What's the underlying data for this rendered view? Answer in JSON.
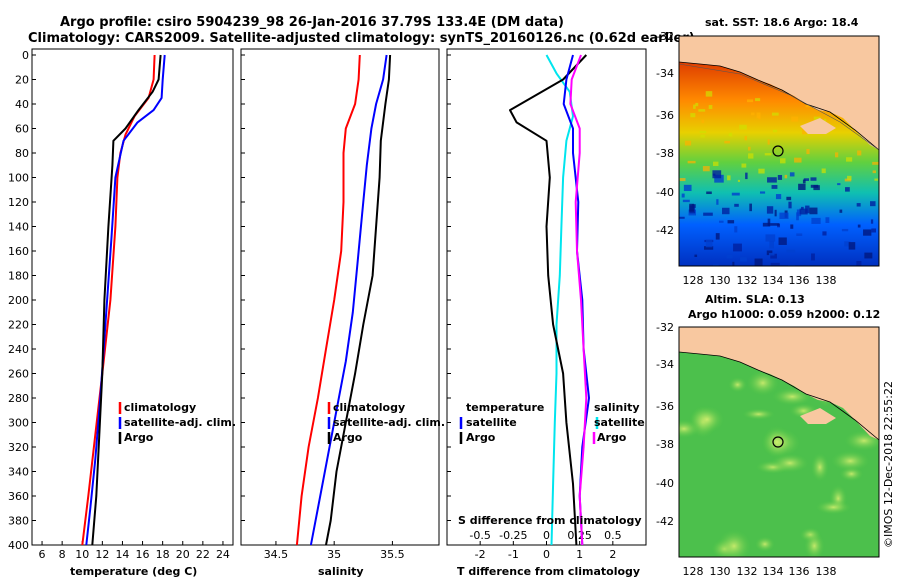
{
  "titles": {
    "line1": "Argo profile: csiro 5904239_98 26-Jan-2016 37.79S 133.4E (DM data)",
    "line2": "Climatology: CARS2009. Satellite-adjusted climatology: synTS_20160126.nc (0.62d earlier)"
  },
  "colors": {
    "climatology": "#ff0000",
    "satellite": "#0000ff",
    "argo": "#000000",
    "cyan": "#00e5ee",
    "magenta": "#ff00ff"
  },
  "chart_data": [
    {
      "type": "line",
      "title": "",
      "xlabel": "temperature (deg C)",
      "ylabel": "depth",
      "xlim": [
        5,
        25
      ],
      "ylim": [
        0,
        400
      ],
      "xticks": [
        6,
        8,
        10,
        12,
        14,
        16,
        18,
        20,
        22,
        24
      ],
      "yticks": [
        0,
        20,
        40,
        60,
        80,
        100,
        120,
        140,
        160,
        180,
        200,
        220,
        240,
        260,
        280,
        300,
        320,
        340,
        360,
        380,
        400
      ],
      "legend": [
        "climatology",
        "satellite-adj. clim.",
        "Argo"
      ],
      "series": [
        {
          "name": "climatology",
          "color": "#ff0000",
          "x": [
            17.2,
            17.1,
            16.6,
            15.2,
            14.3,
            13.8,
            13.5,
            13.3,
            12.8,
            12.0,
            11.3,
            10.6,
            10.0
          ],
          "y": [
            0,
            20,
            35,
            50,
            65,
            80,
            100,
            140,
            200,
            260,
            310,
            360,
            400
          ]
        },
        {
          "name": "satellite-adj. clim.",
          "color": "#0000ff",
          "x": [
            18.2,
            18.0,
            17.9,
            17.1,
            15.5,
            14.1,
            13.3,
            12.9,
            12.3,
            11.8,
            11.3,
            10.8,
            10.4
          ],
          "y": [
            0,
            20,
            35,
            45,
            55,
            70,
            100,
            150,
            220,
            280,
            330,
            370,
            400
          ]
        },
        {
          "name": "Argo",
          "color": "#000000",
          "x": [
            17.8,
            17.6,
            17.0,
            15.6,
            14.3,
            13.1,
            13.0,
            12.6,
            12.2,
            12.0,
            11.7,
            11.4,
            11.0
          ],
          "y": [
            0,
            20,
            30,
            45,
            60,
            70,
            90,
            140,
            200,
            260,
            310,
            360,
            400
          ]
        }
      ]
    },
    {
      "type": "line",
      "title": "",
      "xlabel": "salinity",
      "ylabel": "depth",
      "xlim": [
        34.2,
        35.9
      ],
      "ylim": [
        0,
        400
      ],
      "xticks": [
        34.5,
        35,
        35.5
      ],
      "legend": [
        "climatology",
        "satellite-adj. clim.",
        "Argo"
      ],
      "series": [
        {
          "name": "climatology",
          "color": "#ff0000",
          "x": [
            35.22,
            35.21,
            35.18,
            35.1,
            35.08,
            35.08,
            35.06,
            35.0,
            34.93,
            34.86,
            34.78,
            34.72,
            34.68
          ],
          "y": [
            0,
            20,
            40,
            60,
            80,
            120,
            160,
            200,
            240,
            280,
            320,
            360,
            400
          ]
        },
        {
          "name": "satellite-adj. clim.",
          "color": "#0000ff",
          "x": [
            35.45,
            35.42,
            35.36,
            35.32,
            35.28,
            35.24,
            35.2,
            35.16,
            35.1,
            35.02,
            34.94,
            34.86,
            34.8
          ],
          "y": [
            0,
            20,
            40,
            60,
            90,
            130,
            170,
            210,
            250,
            290,
            330,
            370,
            400
          ]
        },
        {
          "name": "Argo",
          "color": "#000000",
          "x": [
            35.48,
            35.47,
            35.44,
            35.4,
            35.39,
            35.36,
            35.33,
            35.25,
            35.18,
            35.1,
            35.02,
            34.97,
            34.93
          ],
          "y": [
            0,
            20,
            40,
            70,
            100,
            140,
            180,
            220,
            260,
            300,
            340,
            380,
            400
          ]
        }
      ]
    },
    {
      "type": "line",
      "title": "",
      "xlabel": "T difference from climatology",
      "xlabel_top": "S difference from climatology",
      "ylabel": "depth",
      "xlim": [
        -3,
        3
      ],
      "ylim": [
        0,
        400
      ],
      "xticks": [
        -2,
        -1,
        0,
        1,
        2
      ],
      "xticks_top": [
        -0.5,
        -0.25,
        0,
        0.25,
        0.5
      ],
      "legend_left_title": "temperature",
      "legend_right_title": "salinity",
      "legend": [
        "satellite",
        "Argo",
        "satellite",
        "Argo"
      ],
      "series": [
        {
          "name": "temperature satellite",
          "color": "#00e5ee",
          "x": [
            0.0,
            0.3,
            0.7,
            0.8,
            0.6,
            0.5,
            0.45,
            0.4,
            0.3,
            0.3,
            0.25,
            0.2,
            0.15
          ],
          "y": [
            0,
            15,
            30,
            50,
            70,
            100,
            140,
            180,
            220,
            260,
            300,
            350,
            400
          ]
        },
        {
          "name": "temperature Argo",
          "color": "#000000",
          "x": [
            1.2,
            0.5,
            -1.1,
            -0.9,
            0.0,
            0.1,
            0.0,
            0.05,
            0.2,
            0.5,
            0.6,
            0.8,
            0.9
          ],
          "y": [
            0,
            20,
            45,
            55,
            70,
            100,
            140,
            180,
            220,
            260,
            300,
            350,
            400
          ]
        },
        {
          "name": "salinity satellite",
          "color": "#0000ff",
          "x": [
            0.2,
            0.15,
            0.13,
            0.2,
            0.2,
            0.24,
            0.23,
            0.27,
            0.28,
            0.32,
            0.27,
            0.25,
            0.27
          ],
          "y": [
            0,
            20,
            40,
            60,
            80,
            120,
            160,
            200,
            240,
            280,
            320,
            360,
            400
          ]
        },
        {
          "name": "salinity Argo",
          "color": "#ff00ff",
          "x": [
            0.26,
            0.19,
            0.18,
            0.25,
            0.25,
            0.22,
            0.23,
            0.26,
            0.28,
            0.3,
            0.28,
            0.25,
            0.27
          ],
          "y": [
            0,
            20,
            40,
            60,
            80,
            120,
            160,
            200,
            240,
            280,
            320,
            360,
            400
          ]
        }
      ]
    }
  ],
  "maps": {
    "sst": {
      "title": "sat. SST: 18.6 Argo: 18.4"
    },
    "sla": {
      "title1": "Altim. SLA: 0.13",
      "title2": "Argo h1000: 0.059 h2000: 0.12"
    },
    "lat_ticks": [
      "-32",
      "-34",
      "-36",
      "-38",
      "-40",
      "-42"
    ],
    "lon_ticks": [
      "128",
      "130",
      "132",
      "134",
      "136",
      "138"
    ]
  },
  "credit": "©IMOS 12-Dec-2018 22:55:22"
}
